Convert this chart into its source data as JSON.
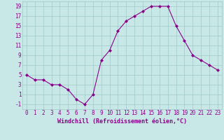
{
  "x": [
    0,
    1,
    2,
    3,
    4,
    5,
    6,
    7,
    8,
    9,
    10,
    11,
    12,
    13,
    14,
    15,
    16,
    17,
    18,
    19,
    20,
    21,
    22,
    23
  ],
  "y": [
    5,
    4,
    4,
    3,
    3,
    2,
    0,
    -1,
    1,
    8,
    10,
    14,
    16,
    17,
    18,
    19,
    19,
    19,
    15,
    12,
    9,
    8,
    7,
    6
  ],
  "line_color": "#8B008B",
  "marker": "D",
  "marker_size": 2.0,
  "bg_color": "#c8e8e8",
  "grid_color": "#a0c8c8",
  "xlabel": "Windchill (Refroidissement éolien,°C)",
  "xlabel_color": "#8B008B",
  "xlabel_fontsize": 6.0,
  "tick_label_color": "#8B008B",
  "tick_label_fontsize": 5.5,
  "ylim": [
    -2,
    20
  ],
  "yticks": [
    -1,
    1,
    3,
    5,
    7,
    9,
    11,
    13,
    15,
    17,
    19
  ],
  "xlim": [
    -0.5,
    23.5
  ],
  "xticks": [
    0,
    1,
    2,
    3,
    4,
    5,
    6,
    7,
    8,
    9,
    10,
    11,
    12,
    13,
    14,
    15,
    16,
    17,
    18,
    19,
    20,
    21,
    22,
    23
  ]
}
